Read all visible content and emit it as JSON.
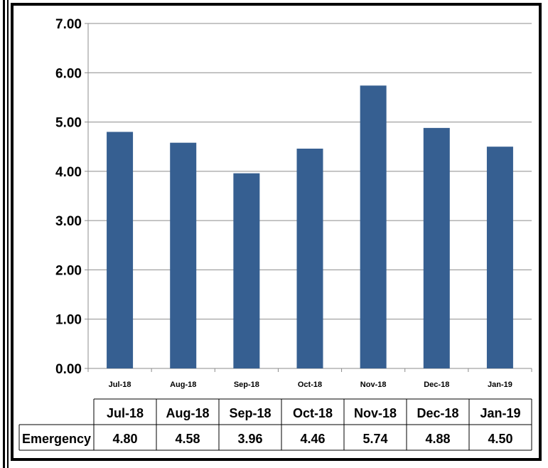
{
  "page": {
    "title_fragment": ""
  },
  "chart_data": {
    "type": "bar",
    "categories": [
      "Jul-18",
      "Aug-18",
      "Sep-18",
      "Oct-18",
      "Nov-18",
      "Dec-18",
      "Jan-19"
    ],
    "series": [
      {
        "name": "Emergency",
        "values": [
          4.8,
          4.58,
          3.96,
          4.46,
          5.74,
          4.88,
          4.5
        ]
      }
    ],
    "value_labels": [
      "4.80",
      "4.58",
      "3.96",
      "4.46",
      "5.74",
      "4.88",
      "4.50"
    ],
    "yticks": [
      "0.00",
      "1.00",
      "2.00",
      "3.00",
      "4.00",
      "5.00",
      "6.00",
      "7.00"
    ],
    "ylim": [
      0,
      7
    ],
    "grid": true,
    "legend": "data-table-below",
    "bar_color": "#365f91",
    "title": "",
    "xlabel": "",
    "ylabel": ""
  }
}
